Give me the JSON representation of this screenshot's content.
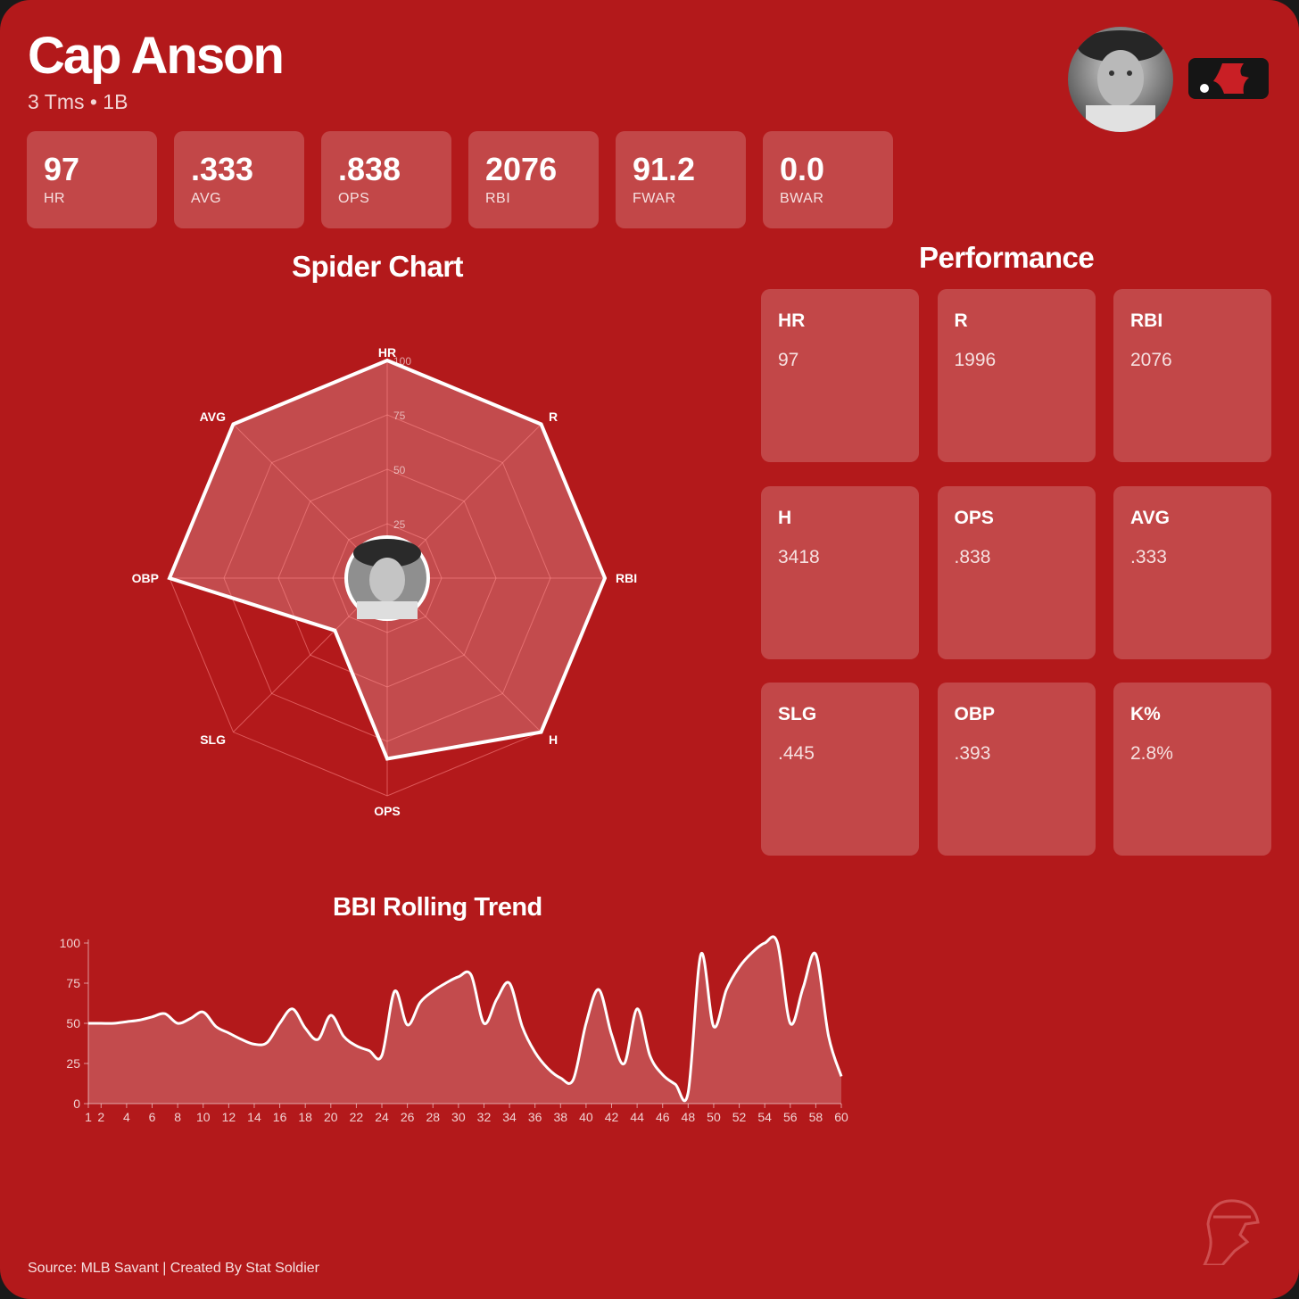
{
  "player": {
    "name": "Cap Anson",
    "subtitle": "3 Tms • 1B"
  },
  "summary": [
    {
      "value": "97",
      "label": "HR"
    },
    {
      "value": ".333",
      "label": "AVG"
    },
    {
      "value": ".838",
      "label": "OPS"
    },
    {
      "value": "2076",
      "label": "RBI"
    },
    {
      "value": "91.2",
      "label": "FWAR"
    },
    {
      "value": "0.0",
      "label": "BWAR"
    }
  ],
  "spider": {
    "title": "Spider Chart",
    "axes": [
      "HR",
      "R",
      "RBI",
      "H",
      "OPS",
      "SLG",
      "OBP",
      "AVG"
    ],
    "values": [
      100,
      100,
      100,
      100,
      83,
      34,
      100,
      100
    ],
    "ticks": [
      "25",
      "50",
      "75",
      "100"
    ],
    "max": 100
  },
  "performance": {
    "title": "Performance",
    "items": [
      {
        "label": "HR",
        "value": "97"
      },
      {
        "label": "R",
        "value": "1996"
      },
      {
        "label": "RBI",
        "value": "2076"
      },
      {
        "label": "H",
        "value": "3418"
      },
      {
        "label": "OPS",
        "value": ".838"
      },
      {
        "label": "AVG",
        "value": ".333"
      },
      {
        "label": "SLG",
        "value": ".445"
      },
      {
        "label": "OBP",
        "value": ".393"
      },
      {
        "label": "K%",
        "value": "2.8%"
      }
    ]
  },
  "chart_data": [
    {
      "type": "radar",
      "title": "Spider Chart",
      "axes": [
        "HR",
        "R",
        "RBI",
        "H",
        "OPS",
        "SLG",
        "OBP",
        "AVG"
      ],
      "values": [
        100,
        100,
        100,
        100,
        83,
        34,
        100,
        100
      ],
      "range": [
        0,
        100
      ],
      "ticks": [
        25,
        50,
        75,
        100
      ]
    },
    {
      "type": "area",
      "title": "BBI Rolling Trend",
      "x": [
        1,
        2,
        3,
        4,
        5,
        6,
        7,
        8,
        9,
        10,
        11,
        12,
        13,
        14,
        15,
        16,
        17,
        18,
        19,
        20,
        21,
        22,
        23,
        24,
        25,
        26,
        27,
        28,
        29,
        30,
        31,
        32,
        33,
        34,
        35,
        36,
        37,
        38,
        39,
        40,
        41,
        42,
        43,
        44,
        45,
        46,
        47,
        48,
        49,
        50,
        51,
        52,
        53,
        54,
        55,
        56,
        57,
        58,
        59,
        60
      ],
      "y": [
        50,
        50,
        50,
        51,
        52,
        54,
        56,
        50,
        53,
        57,
        48,
        44,
        40,
        37,
        38,
        50,
        59,
        47,
        40,
        55,
        42,
        36,
        33,
        30,
        70,
        49,
        63,
        70,
        75,
        79,
        80,
        50,
        65,
        75,
        48,
        32,
        22,
        16,
        15,
        50,
        71,
        43,
        25,
        59,
        30,
        18,
        12,
        7,
        93,
        48,
        71,
        85,
        94,
        100,
        100,
        50,
        72,
        93,
        42,
        17
      ],
      "xticks": [
        "1",
        "2",
        "4",
        "6",
        "8",
        "10",
        "12",
        "14",
        "16",
        "18",
        "20",
        "22",
        "24",
        "26",
        "28",
        "30",
        "32",
        "34",
        "36",
        "38",
        "40",
        "42",
        "44",
        "46",
        "48",
        "50",
        "52",
        "54",
        "56",
        "58",
        "60"
      ],
      "yticks": [
        "0",
        "25",
        "50",
        "75",
        "100"
      ],
      "xlim": [
        1,
        60
      ],
      "ylim": [
        0,
        100
      ]
    }
  ],
  "trend_title": "BBI Rolling Trend",
  "footer": "Source: MLB Savant | Created By Stat Soldier"
}
